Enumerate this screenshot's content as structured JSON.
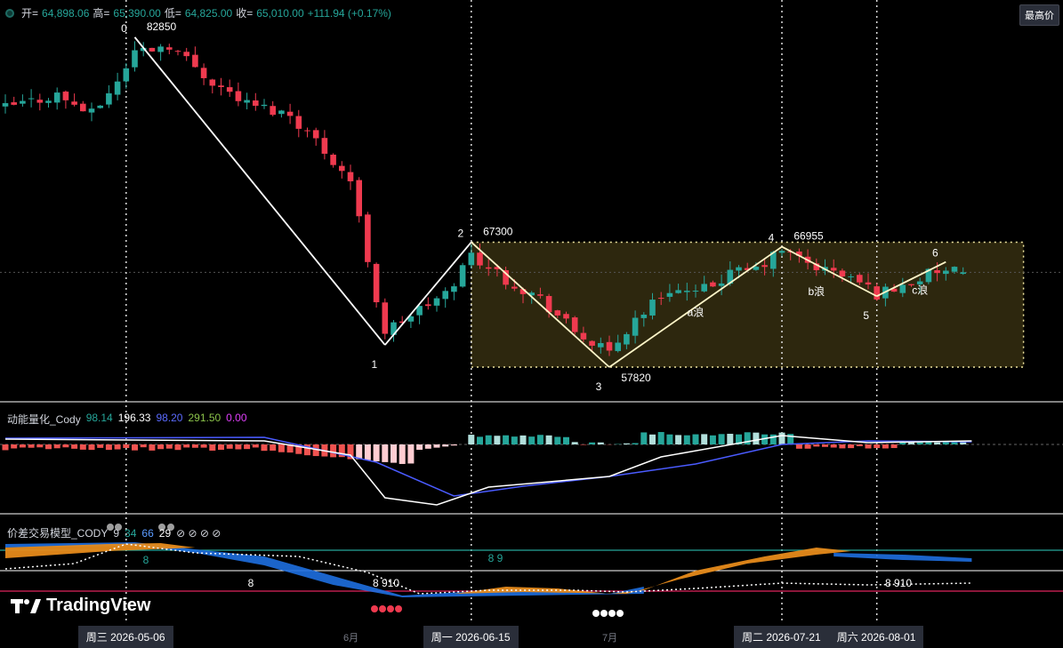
{
  "header": {
    "open_label": "开=",
    "open": "64,898.06",
    "high_label": "高=",
    "high": "65,390.00",
    "low_label": "低=",
    "low": "64,825.00",
    "close_label": "收=",
    "close": "65,010.00",
    "change": "+111.94 (+0.17%)",
    "badge": "最高价"
  },
  "indicators": {
    "momentum": {
      "name": "动能量化_Cody",
      "v1": "98.14",
      "v2": "196.33",
      "v3": "98.20",
      "v4": "291.50",
      "v5": "0.00"
    },
    "spread": {
      "name": "价差交易模型_CODY",
      "v1": "9",
      "v2": "34",
      "v3": "66",
      "v4": "29",
      "symbols": "⊘ ⊘ ⊘ ⊘"
    }
  },
  "brand": {
    "name": "TradingView"
  },
  "chart_data": {
    "type": "candlestick",
    "price_range": [
      56000,
      85000
    ],
    "x_axis": {
      "labels": [
        {
          "text": "周三 2026-05-06",
          "index": 14,
          "highlight": true
        },
        {
          "text": "6月",
          "index": 40,
          "highlight": false
        },
        {
          "text": "周一 2026-06-15",
          "index": 54,
          "highlight": true
        },
        {
          "text": "7月",
          "index": 70,
          "highlight": false
        },
        {
          "text": "周二 2026-07-21",
          "index": 90,
          "highlight": true
        },
        {
          "text": "周六 2026-08-01",
          "index": 101,
          "highlight": true
        }
      ]
    },
    "wave_points": [
      {
        "label": "0",
        "index": 15,
        "price": 82850,
        "price_label": "82850"
      },
      {
        "label": "1",
        "index": 44,
        "price": 59500,
        "price_label": ""
      },
      {
        "label": "2",
        "index": 54,
        "price": 67300,
        "price_label": "67300"
      },
      {
        "label": "3",
        "index": 70,
        "price": 57820,
        "price_label": "57820"
      },
      {
        "label": "4",
        "index": 90,
        "price": 66955,
        "price_label": "66955"
      },
      {
        "label": "5",
        "index": 101,
        "price": 63200,
        "price_label": ""
      },
      {
        "label": "6",
        "index": 109,
        "price": 65800,
        "price_label": ""
      }
    ],
    "wave_texts": [
      {
        "text": "a浪",
        "index": 80,
        "price": 61700
      },
      {
        "text": "b浪",
        "index": 94,
        "price": 63300
      },
      {
        "text": "c浪",
        "index": 106,
        "price": 63400
      }
    ],
    "range_box": {
      "from_index": 54,
      "to_index": 118,
      "top": 67300,
      "bottom": 57820
    },
    "last_price": 65010,
    "momentum_signal_label": "8",
    "spread_labels": [
      "8",
      "8 910",
      "8 9",
      "8 910"
    ],
    "seed": 42
  }
}
